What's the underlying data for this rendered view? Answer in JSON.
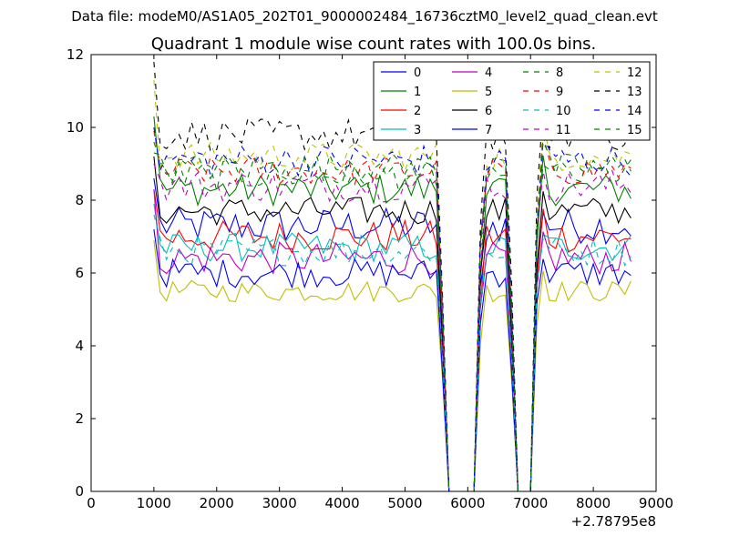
{
  "header": {
    "datafile": "Data file: modeM0/AS1A05_202T01_9000002484_16736cztM0_level2_quad_clean.evt"
  },
  "chart_data": {
    "type": "line",
    "title": "Quadrant 1 module wise count rates with 100.0s bins.",
    "xlabel": "",
    "ylabel": "",
    "x_offset_label": "+2.78795e8",
    "xlim": [
      0,
      9000
    ],
    "ylim": [
      0,
      12
    ],
    "xticks": [
      0,
      1000,
      2000,
      3000,
      4000,
      5000,
      6000,
      7000,
      8000,
      9000
    ],
    "yticks": [
      0,
      2,
      4,
      6,
      8,
      10,
      12
    ],
    "grid": false,
    "legend": {
      "location": "top-right",
      "columns": 4
    },
    "x": [
      1000,
      1100,
      1200,
      1300,
      1400,
      1500,
      1600,
      1700,
      1800,
      1900,
      2000,
      2100,
      2200,
      2300,
      2400,
      2500,
      2600,
      2700,
      2800,
      2900,
      3000,
      3100,
      3200,
      3300,
      3400,
      3500,
      3600,
      3700,
      3800,
      3900,
      4000,
      4100,
      4200,
      4300,
      4400,
      4500,
      4600,
      4700,
      4800,
      4900,
      5000,
      5100,
      5200,
      5300,
      5400,
      5500,
      5600,
      5700,
      5800,
      5900,
      6000,
      6100,
      6200,
      6300,
      6400,
      6500,
      6600,
      6700,
      6800,
      6900,
      7000,
      7100,
      7200,
      7300,
      7400,
      7500,
      7600,
      7700,
      7800,
      7900,
      8000,
      8100,
      8200,
      8300,
      8400,
      8500,
      8600
    ],
    "series": [
      {
        "name": "0",
        "color": "#0000ff",
        "dash": "solid",
        "base": 7.3,
        "amp": 0.5,
        "start": 8.6
      },
      {
        "name": "1",
        "color": "#008000",
        "dash": "solid",
        "base": 8.3,
        "amp": 0.45,
        "start": 10.3
      },
      {
        "name": "2",
        "color": "#ff0000",
        "dash": "solid",
        "base": 7.0,
        "amp": 0.45,
        "start": 8.3
      },
      {
        "name": "3",
        "color": "#00bfbf",
        "dash": "solid",
        "base": 6.7,
        "amp": 0.4,
        "start": 7.9
      },
      {
        "name": "4",
        "color": "#bf00bf",
        "dash": "solid",
        "base": 6.4,
        "amp": 0.45,
        "start": 8.3
      },
      {
        "name": "5",
        "color": "#bfbf00",
        "dash": "solid",
        "base": 5.5,
        "amp": 0.3,
        "start": 6.9
      },
      {
        "name": "6",
        "color": "#000000",
        "dash": "solid",
        "base": 7.7,
        "amp": 0.4,
        "start": 9.2
      },
      {
        "name": "7",
        "color": "#0000ff",
        "dash": "solid",
        "base": 6.0,
        "amp": 0.4,
        "start": 7.2
      },
      {
        "name": "8",
        "color": "#008000",
        "dash": "dashed",
        "base": 8.7,
        "amp": 0.45,
        "start": 9.6
      },
      {
        "name": "9",
        "color": "#ff0000",
        "dash": "dashed",
        "base": 8.8,
        "amp": 0.4,
        "start": 9.9
      },
      {
        "name": "10",
        "color": "#00bfbf",
        "dash": "dashed",
        "base": 6.6,
        "amp": 0.4,
        "start": 7.6
      },
      {
        "name": "11",
        "color": "#bf00bf",
        "dash": "dashed",
        "base": 8.4,
        "amp": 0.45,
        "start": 9.0
      },
      {
        "name": "12",
        "color": "#bfbf00",
        "dash": "dashed",
        "base": 9.2,
        "amp": 0.4,
        "start": 11.3
      },
      {
        "name": "13",
        "color": "#000000",
        "dash": "dashed",
        "base": 9.8,
        "amp": 0.45,
        "start": 11.8
      },
      {
        "name": "14",
        "color": "#0000ff",
        "dash": "dashed",
        "base": 9.1,
        "amp": 0.45,
        "start": 10.0
      },
      {
        "name": "15",
        "color": "#008000",
        "dash": "dashed",
        "base": 8.9,
        "amp": 0.4,
        "start": 9.3
      }
    ],
    "gaps": [
      [
        5700,
        6100
      ],
      [
        6800,
        7000
      ]
    ]
  }
}
